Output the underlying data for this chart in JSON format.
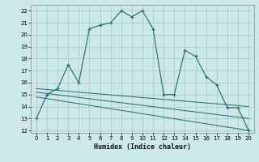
{
  "xlabel": "Humidex (Indice chaleur)",
  "background_color": "#cce8e8",
  "grid_color": "#aacccc",
  "line_color": "#1a6b6b",
  "xlim": [
    -0.5,
    20.5
  ],
  "ylim": [
    11.8,
    22.5
  ],
  "yticks": [
    12,
    13,
    14,
    15,
    16,
    17,
    18,
    19,
    20,
    21,
    22
  ],
  "xticks": [
    0,
    1,
    2,
    3,
    4,
    5,
    6,
    7,
    8,
    9,
    10,
    11,
    12,
    13,
    14,
    15,
    16,
    17,
    18,
    19,
    20
  ],
  "main_line_x": [
    0,
    1,
    2,
    3,
    4,
    5,
    6,
    7,
    8,
    9,
    10,
    11,
    12,
    13,
    14,
    15,
    16,
    17,
    18,
    19,
    20
  ],
  "main_line_y": [
    13,
    15,
    15.5,
    17.5,
    16,
    20.5,
    20.8,
    21,
    22,
    21.5,
    22,
    20.5,
    15,
    15,
    18.7,
    18.2,
    16.5,
    15.8,
    13.9,
    13.9,
    12
  ],
  "trend1_x": [
    0,
    20
  ],
  "trend1_y": [
    15.5,
    14.0
  ],
  "trend2_x": [
    0,
    20
  ],
  "trend2_y": [
    15.2,
    13.0
  ],
  "trend3_x": [
    0,
    20
  ],
  "trend3_y": [
    14.8,
    12.0
  ]
}
